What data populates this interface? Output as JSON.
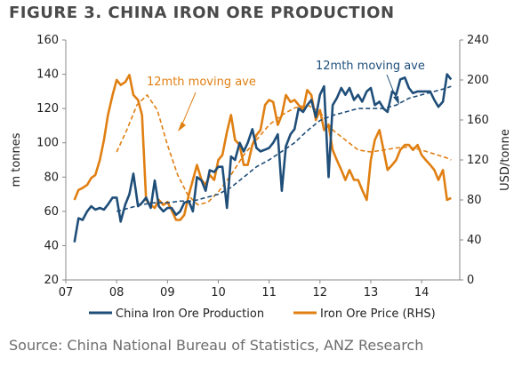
{
  "title": "FIGURE 3. CHINA IRON ORE PRODUCTION",
  "source": "Source: China National Bureau of Statistics, ANZ Research",
  "chart_data": {
    "type": "line",
    "ylabel_left": "m tonnes",
    "ylabel_right": "USD/tonne",
    "ylim_left": [
      20,
      160
    ],
    "ylim_right": [
      0,
      240
    ],
    "yticks_left": [
      "20",
      "40",
      "60",
      "80",
      "100",
      "120",
      "140",
      "160"
    ],
    "yticks_right": [
      "0",
      "40",
      "80",
      "120",
      "160",
      "200",
      "240"
    ],
    "xlim": [
      2007,
      2014.75
    ],
    "xticks": [
      {
        "x": 2007,
        "label": "07"
      },
      {
        "x": 2008,
        "label": "08"
      },
      {
        "x": 2009,
        "label": "09"
      },
      {
        "x": 2010,
        "label": "10"
      },
      {
        "x": 2011,
        "label": "11"
      },
      {
        "x": 2012,
        "label": "12"
      },
      {
        "x": 2013,
        "label": "13"
      },
      {
        "x": 2014,
        "label": "14"
      }
    ],
    "grid": false,
    "legend_position": "bottom",
    "series": [
      {
        "name": "China Iron Ore Production",
        "axis": "left",
        "style": "solid",
        "color": "#1f4e79",
        "x": [
          2007.17,
          2007.25,
          2007.33,
          2007.42,
          2007.5,
          2007.58,
          2007.67,
          2007.75,
          2007.83,
          2007.92,
          2008.0,
          2008.08,
          2008.17,
          2008.25,
          2008.33,
          2008.42,
          2008.5,
          2008.58,
          2008.67,
          2008.75,
          2008.83,
          2008.92,
          2009.0,
          2009.08,
          2009.17,
          2009.25,
          2009.33,
          2009.42,
          2009.5,
          2009.58,
          2009.67,
          2009.75,
          2009.83,
          2009.92,
          2010.0,
          2010.08,
          2010.17,
          2010.25,
          2010.33,
          2010.42,
          2010.5,
          2010.58,
          2010.67,
          2010.75,
          2010.83,
          2010.92,
          2011.0,
          2011.08,
          2011.17,
          2011.25,
          2011.33,
          2011.42,
          2011.5,
          2011.58,
          2011.67,
          2011.75,
          2011.83,
          2011.92,
          2012.0,
          2012.08,
          2012.17,
          2012.25,
          2012.33,
          2012.42,
          2012.5,
          2012.58,
          2012.67,
          2012.75,
          2012.83,
          2012.92,
          2013.0,
          2013.08,
          2013.17,
          2013.25,
          2013.33,
          2013.42,
          2013.5,
          2013.58,
          2013.67,
          2013.75,
          2013.83,
          2013.92,
          2014.0,
          2014.08,
          2014.17,
          2014.25,
          2014.33,
          2014.42,
          2014.5,
          2014.58
        ],
        "values": [
          42,
          56,
          55,
          60,
          63,
          61,
          62,
          61,
          64,
          68,
          68,
          54,
          64,
          70,
          82,
          63,
          65,
          68,
          62,
          78,
          63,
          60,
          62,
          62,
          58,
          60,
          65,
          66,
          60,
          80,
          78,
          72,
          84,
          83,
          86,
          86,
          62,
          92,
          90,
          100,
          95,
          100,
          108,
          97,
          95,
          96,
          97,
          100,
          105,
          72,
          98,
          105,
          108,
          120,
          118,
          122,
          125,
          115,
          128,
          133,
          80,
          122,
          126,
          132,
          128,
          132,
          125,
          128,
          124,
          130,
          132,
          122,
          124,
          120,
          118,
          130,
          128,
          137,
          138,
          132,
          129,
          130,
          130,
          130,
          130,
          125,
          121,
          124,
          140,
          137
        ]
      },
      {
        "name": "Iron Ore Price (RHS)",
        "axis": "right",
        "style": "solid",
        "color": "#e07f12",
        "x": [
          2007.17,
          2007.25,
          2007.33,
          2007.42,
          2007.5,
          2007.58,
          2007.67,
          2007.75,
          2007.83,
          2007.92,
          2008.0,
          2008.08,
          2008.17,
          2008.25,
          2008.33,
          2008.42,
          2008.5,
          2008.58,
          2008.67,
          2008.75,
          2008.83,
          2008.92,
          2009.0,
          2009.08,
          2009.17,
          2009.25,
          2009.33,
          2009.42,
          2009.5,
          2009.58,
          2009.67,
          2009.75,
          2009.83,
          2009.92,
          2010.0,
          2010.08,
          2010.17,
          2010.25,
          2010.33,
          2010.42,
          2010.5,
          2010.58,
          2010.67,
          2010.75,
          2010.83,
          2010.92,
          2011.0,
          2011.08,
          2011.17,
          2011.25,
          2011.33,
          2011.42,
          2011.5,
          2011.58,
          2011.67,
          2011.75,
          2011.83,
          2011.92,
          2012.0,
          2012.08,
          2012.17,
          2012.25,
          2012.33,
          2012.42,
          2012.5,
          2012.58,
          2012.67,
          2012.75,
          2012.83,
          2012.92,
          2013.0,
          2013.08,
          2013.17,
          2013.25,
          2013.33,
          2013.42,
          2013.5,
          2013.58,
          2013.67,
          2013.75,
          2013.83,
          2013.92,
          2014.0,
          2014.08,
          2014.17,
          2014.25,
          2014.33,
          2014.42,
          2014.5,
          2014.58
        ],
        "values": [
          80,
          90,
          92,
          95,
          102,
          105,
          120,
          140,
          165,
          185,
          200,
          195,
          198,
          205,
          185,
          180,
          165,
          80,
          75,
          72,
          80,
          75,
          78,
          70,
          60,
          60,
          65,
          85,
          100,
          115,
          100,
          95,
          105,
          100,
          120,
          125,
          148,
          165,
          140,
          135,
          115,
          115,
          135,
          145,
          150,
          175,
          180,
          178,
          155,
          165,
          185,
          178,
          180,
          175,
          170,
          190,
          185,
          160,
          170,
          150,
          155,
          130,
          120,
          110,
          100,
          110,
          100,
          100,
          90,
          80,
          120,
          140,
          150,
          130,
          110,
          115,
          120,
          130,
          135,
          135,
          130,
          135,
          125,
          120,
          115,
          110,
          100,
          110,
          80,
          82
        ]
      },
      {
        "name": "12mth moving ave",
        "axis": "left",
        "style": "dashed",
        "color": "#1f4e79",
        "x": [
          2008.0,
          2008.25,
          2008.5,
          2008.75,
          2009.0,
          2009.25,
          2009.5,
          2009.75,
          2010.0,
          2010.25,
          2010.5,
          2010.75,
          2011.0,
          2011.25,
          2011.5,
          2011.75,
          2012.0,
          2012.25,
          2012.5,
          2012.75,
          2013.0,
          2013.25,
          2013.5,
          2013.75,
          2014.0,
          2014.25,
          2014.5,
          2014.58
        ],
        "values": [
          60,
          62,
          64,
          65,
          65,
          66,
          66,
          68,
          70,
          74,
          80,
          86,
          90,
          95,
          100,
          107,
          113,
          116,
          118,
          120,
          120,
          120,
          122,
          126,
          128,
          130,
          132,
          133
        ]
      },
      {
        "name": "12mth moving ave",
        "axis": "right",
        "style": "dashed",
        "color": "#e07f12",
        "x": [
          2008.0,
          2008.2,
          2008.4,
          2008.6,
          2008.8,
          2009.0,
          2009.2,
          2009.4,
          2009.6,
          2009.8,
          2010.0,
          2010.25,
          2010.5,
          2010.75,
          2011.0,
          2011.25,
          2011.5,
          2011.75,
          2012.0,
          2012.25,
          2012.5,
          2012.75,
          2013.0,
          2013.25,
          2013.5,
          2013.75,
          2014.0,
          2014.25,
          2014.5,
          2014.58
        ],
        "values": [
          128,
          150,
          175,
          185,
          170,
          135,
          105,
          85,
          75,
          78,
          88,
          105,
          125,
          140,
          155,
          165,
          172,
          175,
          168,
          150,
          140,
          130,
          128,
          130,
          132,
          133,
          130,
          126,
          122,
          120
        ]
      }
    ],
    "annotations": [
      {
        "text": "12mth moving ave",
        "series": "Iron Ore Price (RHS)"
      },
      {
        "text": "12mth moving ave",
        "series": "China Iron Ore Production"
      }
    ]
  }
}
